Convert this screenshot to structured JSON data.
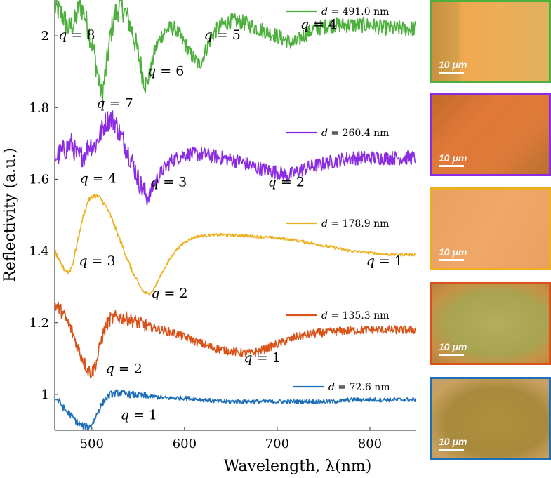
{
  "chart_data": {
    "type": "line",
    "title": "",
    "xlabel": "Wavelength, λ(nm)",
    "ylabel": "Reflectivity (a.u.)",
    "xlim": [
      460,
      850
    ],
    "ylim": [
      0.9,
      2.1
    ],
    "xticks": [
      500,
      600,
      700,
      800
    ],
    "xtick_labels": [
      "500",
      "600",
      "700",
      "800"
    ],
    "yticks": [
      1.0,
      1.2,
      1.4,
      1.6,
      1.8,
      2.0
    ],
    "ytick_labels": [
      "1",
      "1.2",
      "1.4",
      "1.6",
      "1.8",
      "2"
    ],
    "grid": false,
    "legend_position": "top-right of each curve",
    "series": [
      {
        "name": "d = 491.0 nm",
        "d_label": "d",
        "d_value": "= 491.0 nm",
        "color": "#4DAF3C",
        "x": [
          460,
          468,
          475,
          482,
          487,
          492,
          497,
          502,
          507,
          511,
          515,
          520,
          525,
          530,
          535,
          540,
          545,
          550,
          555,
          559,
          563,
          568,
          575,
          582,
          590,
          600,
          606,
          612,
          616,
          620,
          626,
          632,
          640,
          650,
          660,
          670,
          680,
          690,
          700,
          708,
          715,
          720,
          728,
          740,
          760,
          780,
          800,
          820,
          850
        ],
        "y": [
          2.08,
          2.06,
          2.02,
          2.04,
          2.09,
          2.06,
          2.01,
          1.96,
          1.88,
          1.83,
          1.9,
          2.0,
          2.06,
          2.08,
          2.07,
          2.04,
          2.0,
          1.95,
          1.89,
          1.86,
          1.9,
          1.96,
          2.0,
          2.02,
          2.02,
          1.98,
          1.95,
          1.93,
          1.92,
          1.94,
          1.98,
          2.01,
          2.03,
          2.04,
          2.04,
          2.03,
          2.02,
          2.01,
          2.0,
          1.99,
          1.98,
          1.98,
          2.0,
          2.02,
          2.03,
          2.03,
          2.03,
          2.02,
          2.02
        ],
        "noise": 0.022
      },
      {
        "name": "d = 260.4 nm",
        "d_label": "d",
        "d_value": "= 260.4 nm",
        "color": "#8B2BE2",
        "x": [
          460,
          470,
          478,
          485,
          492,
          498,
          503,
          508,
          515,
          520,
          525,
          530,
          535,
          540,
          545,
          550,
          555,
          560,
          563,
          568,
          575,
          585,
          600,
          620,
          640,
          660,
          680,
          700,
          712,
          720,
          730,
          745,
          760,
          780,
          800,
          820,
          850
        ],
        "y": [
          1.66,
          1.68,
          1.7,
          1.66,
          1.67,
          1.7,
          1.69,
          1.72,
          1.76,
          1.77,
          1.76,
          1.73,
          1.7,
          1.67,
          1.64,
          1.6,
          1.57,
          1.55,
          1.56,
          1.59,
          1.62,
          1.65,
          1.67,
          1.67,
          1.66,
          1.65,
          1.63,
          1.62,
          1.61,
          1.62,
          1.63,
          1.64,
          1.65,
          1.66,
          1.66,
          1.66,
          1.66
        ],
        "noise": 0.02
      },
      {
        "name": "d = 178.9 nm",
        "d_label": "d",
        "d_value": "= 178.9 nm",
        "color": "#EDB120",
        "x": [
          460,
          465,
          470,
          475,
          479,
          484,
          490,
          496,
          502,
          508,
          514,
          520,
          526,
          532,
          538,
          544,
          550,
          556,
          561,
          566,
          572,
          580,
          590,
          600,
          610,
          620,
          640,
          660,
          680,
          700,
          720,
          740,
          760,
          780,
          800,
          820,
          840,
          850
        ],
        "y": [
          1.4,
          1.37,
          1.35,
          1.34,
          1.36,
          1.42,
          1.49,
          1.54,
          1.555,
          1.55,
          1.53,
          1.5,
          1.46,
          1.42,
          1.38,
          1.34,
          1.31,
          1.285,
          1.28,
          1.29,
          1.32,
          1.36,
          1.4,
          1.425,
          1.438,
          1.443,
          1.445,
          1.443,
          1.44,
          1.436,
          1.43,
          1.42,
          1.41,
          1.4,
          1.395,
          1.39,
          1.39,
          1.39
        ],
        "noise": 0.004
      },
      {
        "name": "d = 135.3 nm",
        "d_label": "d",
        "d_value": "= 135.3 nm",
        "color": "#D95319",
        "x": [
          460,
          465,
          470,
          478,
          485,
          490,
          495,
          500,
          505,
          510,
          515,
          520,
          525,
          530,
          540,
          550,
          560,
          575,
          590,
          610,
          630,
          650,
          665,
          672,
          680,
          700,
          720,
          740,
          760,
          780,
          800,
          820,
          850
        ],
        "y": [
          1.25,
          1.24,
          1.22,
          1.18,
          1.13,
          1.1,
          1.07,
          1.06,
          1.09,
          1.15,
          1.19,
          1.21,
          1.215,
          1.215,
          1.21,
          1.2,
          1.19,
          1.18,
          1.17,
          1.15,
          1.13,
          1.12,
          1.115,
          1.115,
          1.12,
          1.14,
          1.16,
          1.17,
          1.175,
          1.178,
          1.18,
          1.18,
          1.18
        ],
        "noise": 0.012
      },
      {
        "name": "d = 72.6 nm",
        "d_label": "d",
        "d_value": "= 72.6 nm",
        "color": "#1F6FB8",
        "x": [
          460,
          465,
          470,
          478,
          485,
          492,
          498,
          503,
          508,
          514,
          520,
          528,
          540,
          560,
          580,
          600,
          620,
          640,
          660,
          680,
          700,
          720,
          740,
          760,
          780,
          800,
          820,
          850
        ],
        "y": [
          0.99,
          0.98,
          0.96,
          0.94,
          0.92,
          0.91,
          0.91,
          0.93,
          0.96,
          0.985,
          1.0,
          1.005,
          1.0,
          0.995,
          0.99,
          0.99,
          0.985,
          0.98,
          0.98,
          0.98,
          0.98,
          0.98,
          0.98,
          0.98,
          0.985,
          0.985,
          0.985,
          0.985
        ],
        "noise": 0.006
      }
    ],
    "annotations": [
      {
        "text": "q = 8",
        "series": 0,
        "x": 464,
        "y": 1.99
      },
      {
        "text": "q = 7",
        "series": 0,
        "x": 505,
        "y": 1.8
      },
      {
        "text": "q = 6",
        "series": 0,
        "x": 560,
        "y": 1.89
      },
      {
        "text": "q = 5",
        "series": 0,
        "x": 621,
        "y": 1.99
      },
      {
        "text": "q = 4",
        "series": 0,
        "x": 725,
        "y": 2.02
      },
      {
        "text": "q = 4",
        "series": 1,
        "x": 487,
        "y": 1.59
      },
      {
        "text": "q = 3",
        "series": 1,
        "x": 563,
        "y": 1.58
      },
      {
        "text": "q = 2",
        "series": 1,
        "x": 690,
        "y": 1.58
      },
      {
        "text": "q = 3",
        "series": 2,
        "x": 486,
        "y": 1.36
      },
      {
        "text": "q = 2",
        "series": 2,
        "x": 564,
        "y": 1.27
      },
      {
        "text": "q = 1",
        "series": 2,
        "x": 796,
        "y": 1.36
      },
      {
        "text": "q = 2",
        "series": 3,
        "x": 515,
        "y": 1.06
      },
      {
        "text": "q = 1",
        "series": 3,
        "x": 664,
        "y": 1.09
      },
      {
        "text": "q = 1",
        "series": 4,
        "x": 531,
        "y": 0.93
      }
    ]
  },
  "micrographs": [
    {
      "name": "panel-green",
      "border": "#4DAF3C",
      "scale_label": "10 μm"
    },
    {
      "name": "panel-purple",
      "border": "#8B2BE2",
      "scale_label": "10 μm"
    },
    {
      "name": "panel-yellow",
      "border": "#EDB120",
      "scale_label": "10 μm"
    },
    {
      "name": "panel-orange",
      "border": "#D95319",
      "scale_label": "10 μm"
    },
    {
      "name": "panel-blue",
      "border": "#1F6FB8",
      "scale_label": "10 μm"
    }
  ]
}
